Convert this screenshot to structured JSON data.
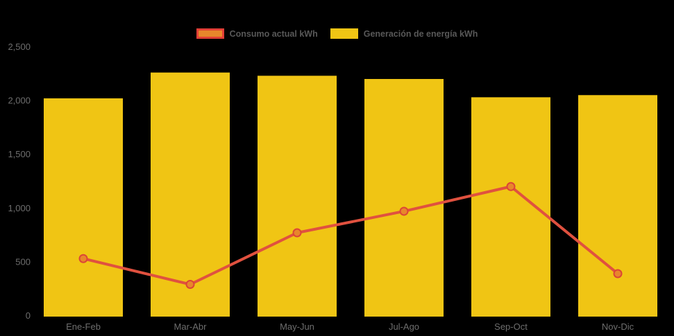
{
  "colors": {
    "background": "#000000",
    "bar_fill": "#F0C514",
    "line_stroke": "#E0513F",
    "marker_fill": "#E8872B",
    "marker_stroke": "#DC4536",
    "axis_label_color": "#6E6E6E",
    "legend_label_color": "#585858"
  },
  "legend": {
    "items": [
      {
        "label": "Consumo actual kWh",
        "swatch_fill": "#E8872B",
        "swatch_border": "#E23F36"
      },
      {
        "label": "Generación de energía kWh",
        "swatch_fill": "#F0C514",
        "swatch_border": "#F0C514"
      }
    ]
  },
  "chart_data": {
    "type": "bar",
    "subtype": "bar-with-line-overlay",
    "title": "",
    "xlabel": "",
    "ylabel": "",
    "categories": [
      "Ene-Feb",
      "Mar-Abr",
      "May-Jun",
      "Jul-Ago",
      "Sep-Oct",
      "Nov-Dic"
    ],
    "series": [
      {
        "name": "Generación de energía kWh",
        "type": "bar",
        "values": [
          2030,
          2270,
          2240,
          2210,
          2040,
          2060
        ]
      },
      {
        "name": "Consumo actual kWh",
        "type": "line",
        "values": [
          530,
          290,
          770,
          970,
          1200,
          390
        ]
      }
    ],
    "ylim": [
      0,
      2500
    ],
    "yticks": [
      0,
      500,
      1000,
      1500,
      2000,
      2500
    ],
    "ytick_labels": [
      "0",
      "500",
      "1,000",
      "1,500",
      "2,000",
      "2,500"
    ],
    "grid": false,
    "legend_position": "top-center"
  }
}
